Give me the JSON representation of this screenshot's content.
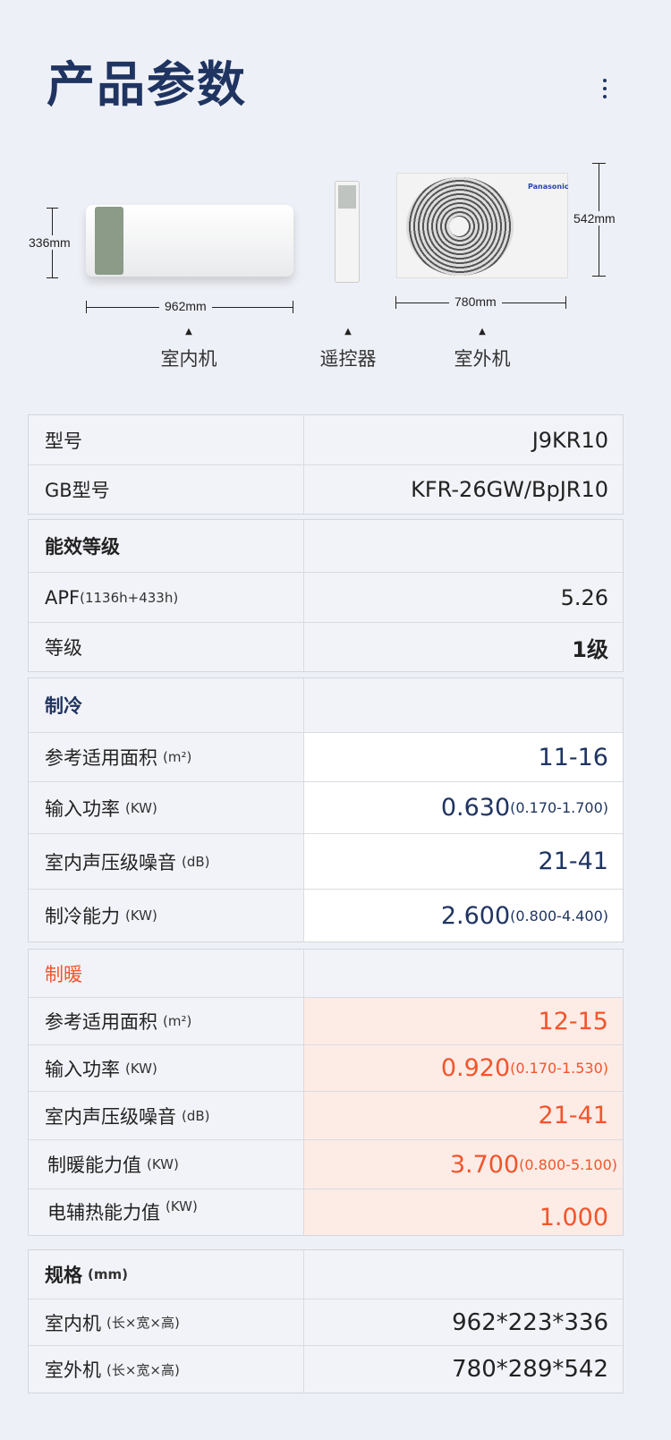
{
  "title": "产品参数",
  "diagram": {
    "indoor_height": "336mm",
    "indoor_width": "962mm",
    "outdoor_height": "542mm",
    "outdoor_width": "780mm",
    "brand": "Panasonic",
    "captions": [
      "室内机",
      "遥控器",
      "室外机"
    ]
  },
  "model": [
    {
      "label": "型号",
      "value": "J9KR10"
    },
    {
      "label": "GB型号",
      "value": "KFR-26GW/BpJR10"
    }
  ],
  "efficiency": {
    "header": "能效等级",
    "rows": [
      {
        "label": "APF",
        "unit": "(1136h+433h)",
        "value": "5.26"
      },
      {
        "label": "等级",
        "unit": "",
        "value": "1级"
      }
    ]
  },
  "cooling": {
    "header": "制冷",
    "rows": [
      {
        "label": "参考适用面积",
        "unit": "(m²)",
        "value": "11-16",
        "range": ""
      },
      {
        "label": "输入功率",
        "unit": "(KW)",
        "value": "0.630",
        "range": "(0.170-1.700)"
      },
      {
        "label": "室内声压级噪音",
        "unit": "(dB)",
        "value": "21-41",
        "range": ""
      },
      {
        "label": "制冷能力",
        "unit": "(KW)",
        "value": "2.600",
        "range": "(0.800-4.400)"
      }
    ]
  },
  "heating": {
    "header": "制暖",
    "rows": [
      {
        "label": "参考适用面积",
        "unit": "(m²)",
        "value": "12-15",
        "range": ""
      },
      {
        "label": "输入功率",
        "unit": "(KW)",
        "value": "0.920",
        "range": "(0.170-1.530)"
      },
      {
        "label": "室内声压级噪音",
        "unit": "(dB)",
        "value": "21-41",
        "range": ""
      },
      {
        "label": "制暖能力值",
        "unit": "(KW)",
        "value": "3.700",
        "range": "(0.800-5.100)"
      },
      {
        "label": "电辅热能力值",
        "unit": "(KW)",
        "value": "1.000",
        "range": ""
      }
    ]
  },
  "size": {
    "header": "规格",
    "header_unit": "(mm)",
    "rows": [
      {
        "label": "室内机",
        "unit": "(长×宽×高)",
        "value": "962*223*336"
      },
      {
        "label": "室外机",
        "unit": "(长×宽×高)",
        "value": "780*289*542"
      }
    ]
  },
  "colors": {
    "navy": "#1f3461",
    "orange": "#f2552a",
    "heat_bg": "#fdebe6"
  }
}
